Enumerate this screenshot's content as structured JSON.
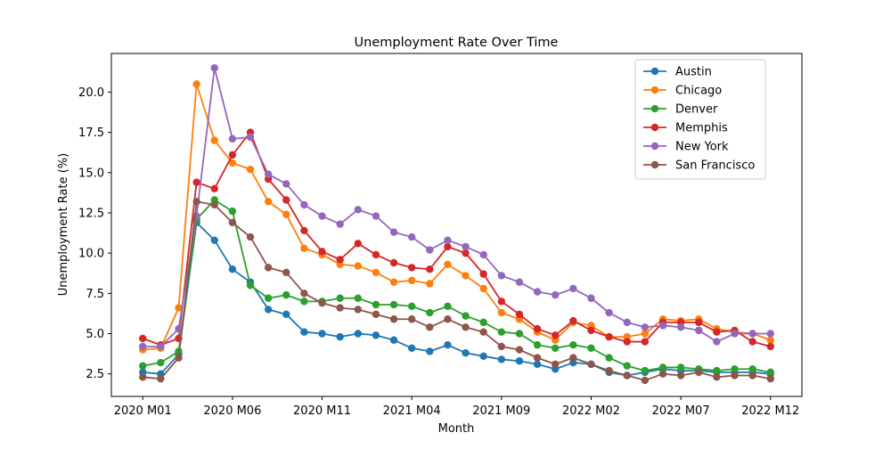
{
  "chart_data": {
    "type": "line",
    "title": "Unemployment Rate Over Time",
    "xlabel": "Month",
    "ylabel": "Unemployment Rate (%)",
    "x": [
      "2020 M01",
      "2020 M02",
      "2020 M03",
      "2020 M04",
      "2020 M05",
      "2020 M06",
      "2020 M07",
      "2020 M08",
      "2020 M09",
      "2020 M10",
      "2020 M11",
      "2020 M12",
      "2021 M01",
      "2021 M02",
      "2021 M03",
      "2021 M04",
      "2021 M05",
      "2021 M06",
      "2021 M07",
      "2021 M08",
      "2021 M09",
      "2021 M10",
      "2021 M11",
      "2021 M12",
      "2022 M01",
      "2022 M02",
      "2022 M03",
      "2022 M04",
      "2022 M05",
      "2022 M06",
      "2022 M07",
      "2022 M08",
      "2022 M09",
      "2022 M10",
      "2022 M11",
      "2022 M12"
    ],
    "xticks": [
      "2020 M01",
      "2020 M06",
      "2020 M11",
      "2021 M04",
      "2021 M09",
      "2022 M02",
      "2022 M07",
      "2022 M12"
    ],
    "yticks": [
      2.5,
      5.0,
      7.5,
      10.0,
      12.5,
      15.0,
      17.5,
      20.0
    ],
    "ytick_labels": [
      "2.5",
      "5.0",
      "7.5",
      "10.0",
      "12.5",
      "15.0",
      "17.5",
      "20.0"
    ],
    "ylim": [
      1.1,
      22.4
    ],
    "grid": false,
    "legend_position": "top-right",
    "series": [
      {
        "name": "Austin",
        "color": "#1f77b4",
        "values": [
          2.6,
          2.5,
          3.7,
          11.9,
          10.8,
          9.0,
          8.2,
          6.5,
          6.2,
          5.1,
          5.0,
          4.8,
          5.0,
          4.9,
          4.6,
          4.1,
          3.9,
          4.3,
          3.8,
          3.6,
          3.4,
          3.3,
          3.1,
          2.8,
          3.2,
          3.1,
          2.6,
          2.4,
          2.6,
          2.8,
          2.7,
          2.7,
          2.6,
          2.6,
          2.6,
          2.5
        ]
      },
      {
        "name": "Chicago",
        "color": "#ff7f0e",
        "values": [
          4.0,
          4.1,
          6.6,
          20.5,
          17.0,
          15.6,
          15.2,
          13.2,
          12.4,
          10.3,
          9.9,
          9.3,
          9.2,
          8.8,
          8.2,
          8.3,
          8.1,
          9.3,
          8.6,
          7.8,
          6.3,
          5.9,
          5.1,
          4.6,
          5.7,
          5.5,
          4.8,
          4.8,
          5.0,
          5.9,
          5.8,
          5.9,
          5.3,
          5.1,
          5.0,
          4.6
        ]
      },
      {
        "name": "Denver",
        "color": "#2ca02c",
        "values": [
          3.0,
          3.2,
          3.9,
          12.1,
          13.3,
          12.6,
          8.0,
          7.2,
          7.4,
          7.0,
          7.0,
          7.2,
          7.2,
          6.8,
          6.8,
          6.7,
          6.3,
          6.7,
          6.1,
          5.7,
          5.1,
          5.0,
          4.3,
          4.1,
          4.3,
          4.1,
          3.5,
          3.0,
          2.7,
          2.9,
          2.9,
          2.8,
          2.7,
          2.8,
          2.8,
          2.6
        ]
      },
      {
        "name": "Memphis",
        "color": "#d62728",
        "values": [
          4.7,
          4.3,
          4.7,
          14.4,
          14.0,
          16.1,
          17.5,
          14.6,
          13.3,
          11.4,
          10.1,
          9.6,
          10.6,
          9.9,
          9.4,
          9.1,
          9.0,
          10.4,
          10.0,
          8.7,
          7.0,
          6.2,
          5.3,
          4.9,
          5.8,
          5.2,
          4.8,
          4.5,
          4.5,
          5.7,
          5.7,
          5.7,
          5.1,
          5.2,
          4.5,
          4.2
        ]
      },
      {
        "name": "New York",
        "color": "#9467bd",
        "values": [
          4.2,
          4.2,
          5.3,
          12.3,
          21.5,
          17.1,
          17.2,
          14.9,
          14.3,
          13.0,
          12.3,
          11.8,
          12.7,
          12.3,
          11.3,
          11.0,
          10.2,
          10.8,
          10.4,
          9.9,
          8.6,
          8.2,
          7.6,
          7.4,
          7.8,
          7.2,
          6.3,
          5.7,
          5.4,
          5.5,
          5.4,
          5.2,
          4.5,
          5.0,
          5.0,
          5.0
        ]
      },
      {
        "name": "San Francisco",
        "color": "#8c564b",
        "values": [
          2.3,
          2.2,
          3.5,
          13.2,
          13.0,
          11.9,
          11.0,
          9.1,
          8.8,
          7.5,
          6.9,
          6.6,
          6.5,
          6.2,
          5.9,
          5.9,
          5.4,
          5.9,
          5.4,
          5.1,
          4.2,
          4.0,
          3.5,
          3.1,
          3.5,
          3.1,
          2.7,
          2.4,
          2.1,
          2.5,
          2.4,
          2.6,
          2.3,
          2.4,
          2.4,
          2.2
        ]
      }
    ]
  }
}
